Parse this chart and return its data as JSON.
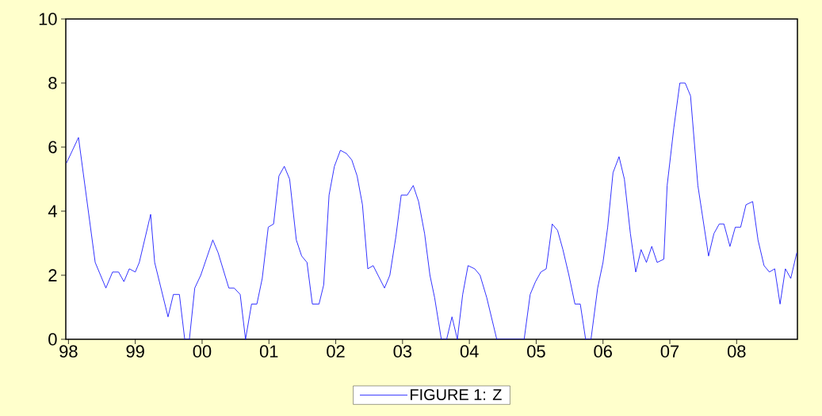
{
  "chart_data": {
    "type": "line",
    "x": [
      1997.97,
      1998.15,
      1998.4,
      1998.56,
      1998.66,
      1998.75,
      1998.83,
      1998.91,
      1999.0,
      1999.06,
      1999.23,
      1999.29,
      1999.49,
      1999.57,
      1999.66,
      1999.74,
      1999.81,
      1999.89,
      1999.98,
      2000.16,
      2000.24,
      2000.4,
      2000.48,
      2000.57,
      2000.65,
      2000.74,
      2000.82,
      2000.9,
      2000.99,
      2001.07,
      2001.15,
      2001.23,
      2001.31,
      2001.41,
      2001.49,
      2001.57,
      2001.65,
      2001.75,
      2001.82,
      2001.9,
      2001.98,
      2002.07,
      2002.16,
      2002.24,
      2002.32,
      2002.4,
      2002.48,
      2002.56,
      2002.73,
      2002.81,
      2002.9,
      2002.98,
      2003.07,
      2003.16,
      2003.24,
      2003.33,
      2003.41,
      2003.48,
      2003.58,
      2003.66,
      2003.74,
      2003.82,
      2003.9,
      2003.98,
      2004.08,
      2004.16,
      2004.26,
      2004.41,
      2004.82,
      2004.91,
      2004.99,
      2005.07,
      2005.15,
      2005.24,
      2005.32,
      2005.4,
      2005.49,
      2005.58,
      2005.66,
      2005.74,
      2005.82,
      2005.92,
      2006.0,
      2006.07,
      2006.15,
      2006.24,
      2006.32,
      2006.41,
      2006.49,
      2006.57,
      2006.65,
      2006.73,
      2006.81,
      2006.91,
      2006.96,
      2007.06,
      2007.15,
      2007.23,
      2007.31,
      2007.42,
      2007.58,
      2007.66,
      2007.74,
      2007.81,
      2007.9,
      2007.98,
      2008.06,
      2008.14,
      2008.24,
      2008.32,
      2008.41,
      2008.49,
      2008.57,
      2008.65,
      2008.73,
      2008.81,
      2008.9
    ],
    "series": [
      {
        "name": "FIGURE 1: Z",
        "color": "#0000ff",
        "values": [
          5.5,
          6.3,
          2.4,
          1.6,
          2.1,
          2.1,
          1.8,
          2.2,
          2.1,
          2.4,
          3.9,
          2.4,
          0.7,
          1.4,
          1.4,
          0,
          0,
          1.6,
          2.0,
          3.1,
          2.7,
          1.6,
          1.6,
          1.4,
          0,
          1.1,
          1.1,
          1.9,
          3.5,
          3.6,
          5.1,
          5.4,
          5.0,
          3.1,
          2.6,
          2.4,
          1.1,
          1.1,
          1.7,
          4.5,
          5.4,
          5.9,
          5.8,
          5.6,
          5.1,
          4.2,
          2.2,
          2.3,
          1.6,
          2.0,
          3.2,
          4.5,
          4.5,
          4.8,
          4.3,
          3.3,
          2.0,
          1.3,
          0,
          0,
          0.7,
          0,
          1.4,
          2.3,
          2.2,
          2.0,
          1.3,
          0,
          0,
          1.4,
          1.8,
          2.1,
          2.2,
          3.6,
          3.4,
          2.8,
          2.0,
          1.1,
          1.1,
          0,
          0,
          1.6,
          2.4,
          3.5,
          5.2,
          5.7,
          5.0,
          3.3,
          2.1,
          2.8,
          2.4,
          2.9,
          2.4,
          2.5,
          4.8,
          6.6,
          8.0,
          8.0,
          7.6,
          4.8,
          2.6,
          3.3,
          3.6,
          3.6,
          2.9,
          3.5,
          3.5,
          4.2,
          4.3,
          3.1,
          2.3,
          2.1,
          2.2,
          1.1,
          2.2,
          1.9,
          2.7
        ]
      }
    ],
    "xlim": [
      1997.96,
      2008.91
    ],
    "ylim": [
      0,
      10
    ],
    "xticks": [
      {
        "value": 1998,
        "label": "98"
      },
      {
        "value": 1999,
        "label": "99"
      },
      {
        "value": 2000,
        "label": "00"
      },
      {
        "value": 2001,
        "label": "01"
      },
      {
        "value": 2002,
        "label": "02"
      },
      {
        "value": 2003,
        "label": "03"
      },
      {
        "value": 2004,
        "label": "04"
      },
      {
        "value": 2005,
        "label": "05"
      },
      {
        "value": 2006,
        "label": "06"
      },
      {
        "value": 2007,
        "label": "07"
      },
      {
        "value": 2008,
        "label": "08"
      }
    ],
    "yticks": [
      0,
      2,
      4,
      6,
      8,
      10
    ],
    "legend": "bottom"
  }
}
